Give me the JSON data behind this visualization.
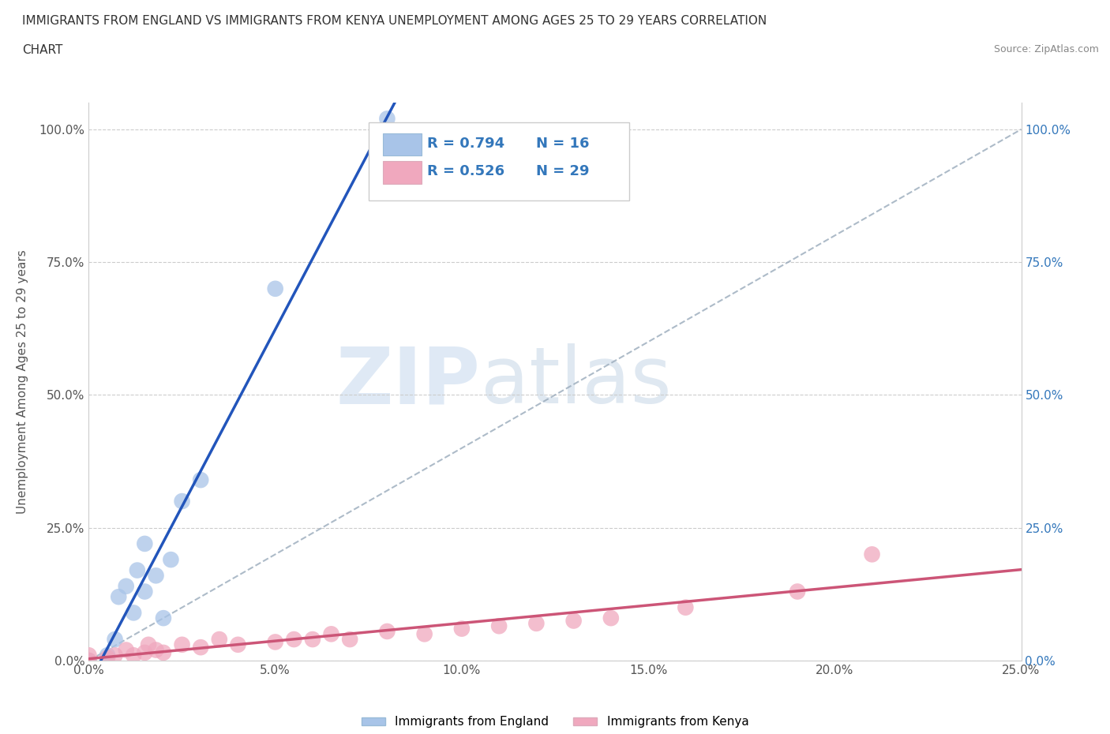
{
  "title_line1": "IMMIGRANTS FROM ENGLAND VS IMMIGRANTS FROM KENYA UNEMPLOYMENT AMONG AGES 25 TO 29 YEARS CORRELATION",
  "title_line2": "CHART",
  "source": "Source: ZipAtlas.com",
  "ylabel": "Unemployment Among Ages 25 to 29 years",
  "xlim": [
    0.0,
    0.25
  ],
  "ylim": [
    0.0,
    1.05
  ],
  "yticks": [
    0.0,
    0.25,
    0.5,
    0.75,
    1.0
  ],
  "ytick_labels": [
    "0.0%",
    "25.0%",
    "50.0%",
    "75.0%",
    "100.0%"
  ],
  "xticks": [
    0.0,
    0.05,
    0.1,
    0.15,
    0.2,
    0.25
  ],
  "xtick_labels": [
    "0.0%",
    "5.0%",
    "10.0%",
    "15.0%",
    "20.0%",
    "25.0%"
  ],
  "england_color": "#a8c4e8",
  "kenya_color": "#f0a8be",
  "england_R": 0.794,
  "england_N": 16,
  "kenya_R": 0.526,
  "kenya_N": 29,
  "legend_R_color": "#3377bb",
  "watermark_zip": "ZIP",
  "watermark_atlas": "atlas",
  "england_scatter_x": [
    0.0,
    0.005,
    0.007,
    0.008,
    0.01,
    0.012,
    0.013,
    0.015,
    0.015,
    0.018,
    0.02,
    0.022,
    0.025,
    0.03,
    0.05,
    0.08
  ],
  "england_scatter_y": [
    0.0,
    0.01,
    0.04,
    0.12,
    0.14,
    0.09,
    0.17,
    0.13,
    0.22,
    0.16,
    0.08,
    0.19,
    0.3,
    0.34,
    0.7,
    1.02
  ],
  "kenya_scatter_x": [
    0.0,
    0.0,
    0.005,
    0.007,
    0.01,
    0.012,
    0.015,
    0.016,
    0.018,
    0.02,
    0.025,
    0.03,
    0.035,
    0.04,
    0.05,
    0.055,
    0.06,
    0.065,
    0.07,
    0.08,
    0.09,
    0.1,
    0.11,
    0.12,
    0.13,
    0.14,
    0.16,
    0.19,
    0.21
  ],
  "kenya_scatter_y": [
    0.0,
    0.01,
    0.005,
    0.01,
    0.02,
    0.01,
    0.015,
    0.03,
    0.02,
    0.015,
    0.03,
    0.025,
    0.04,
    0.03,
    0.035,
    0.04,
    0.04,
    0.05,
    0.04,
    0.055,
    0.05,
    0.06,
    0.065,
    0.07,
    0.075,
    0.08,
    0.1,
    0.13,
    0.2
  ],
  "england_trendline_color": "#2255bb",
  "kenya_trendline_color": "#cc5577",
  "dashed_line_color": "#99aabb",
  "background_color": "#ffffff",
  "grid_color": "#cccccc",
  "legend_label_england": "Immigrants from England",
  "legend_label_kenya": "Immigrants from Kenya"
}
